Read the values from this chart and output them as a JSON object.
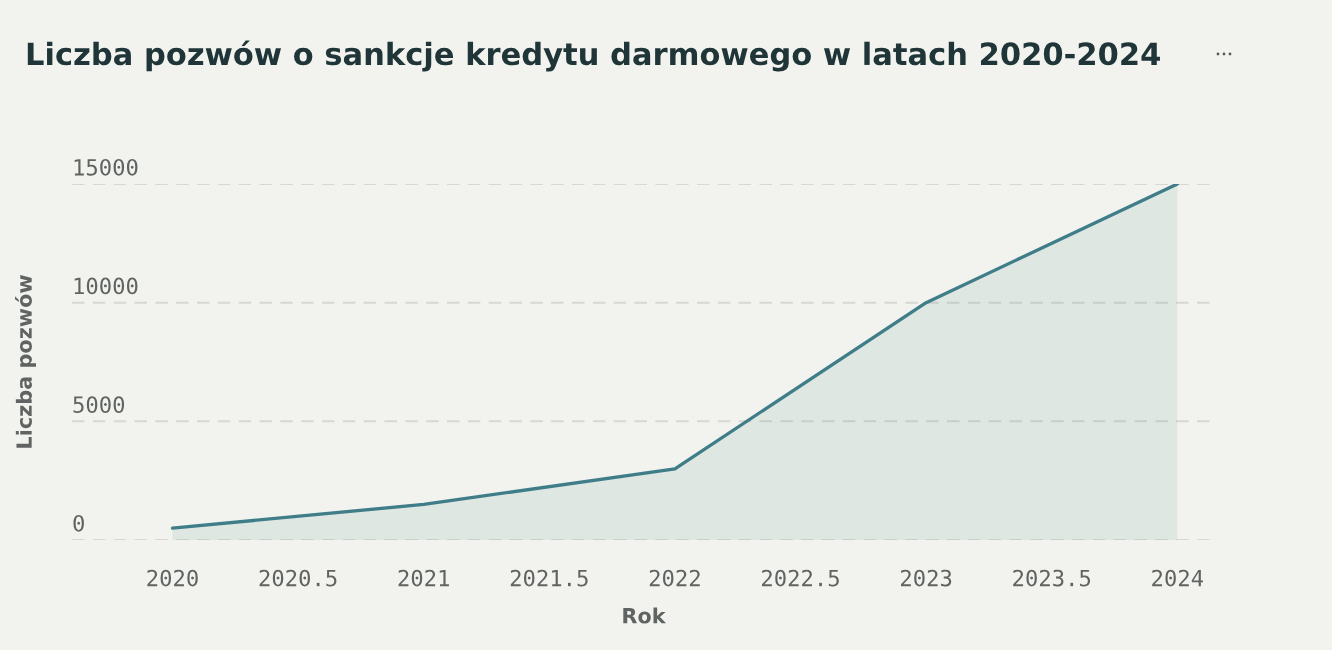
{
  "chart_data": {
    "type": "area",
    "title": "Liczba pozwów o sankcje kredytu darmowego w latach 2020-2024",
    "xlabel": "Rok",
    "ylabel": "Liczba pozwów",
    "x": [
      2020,
      2021,
      2022,
      2023,
      2024
    ],
    "series": [
      {
        "color": "#3f7d89",
        "values": [
          500,
          1500,
          3000,
          10000,
          15000
        ]
      }
    ],
    "xlim": [
      2019.6,
      2024.15
    ],
    "ylim": [
      0,
      15000
    ],
    "xticks": [
      2020,
      2020.5,
      2021,
      2021.5,
      2022,
      2022.5,
      2023,
      2023.5,
      2024
    ],
    "yticks": [
      0,
      5000,
      10000,
      15000
    ],
    "grid": "y",
    "line_style": "solid"
  }
}
